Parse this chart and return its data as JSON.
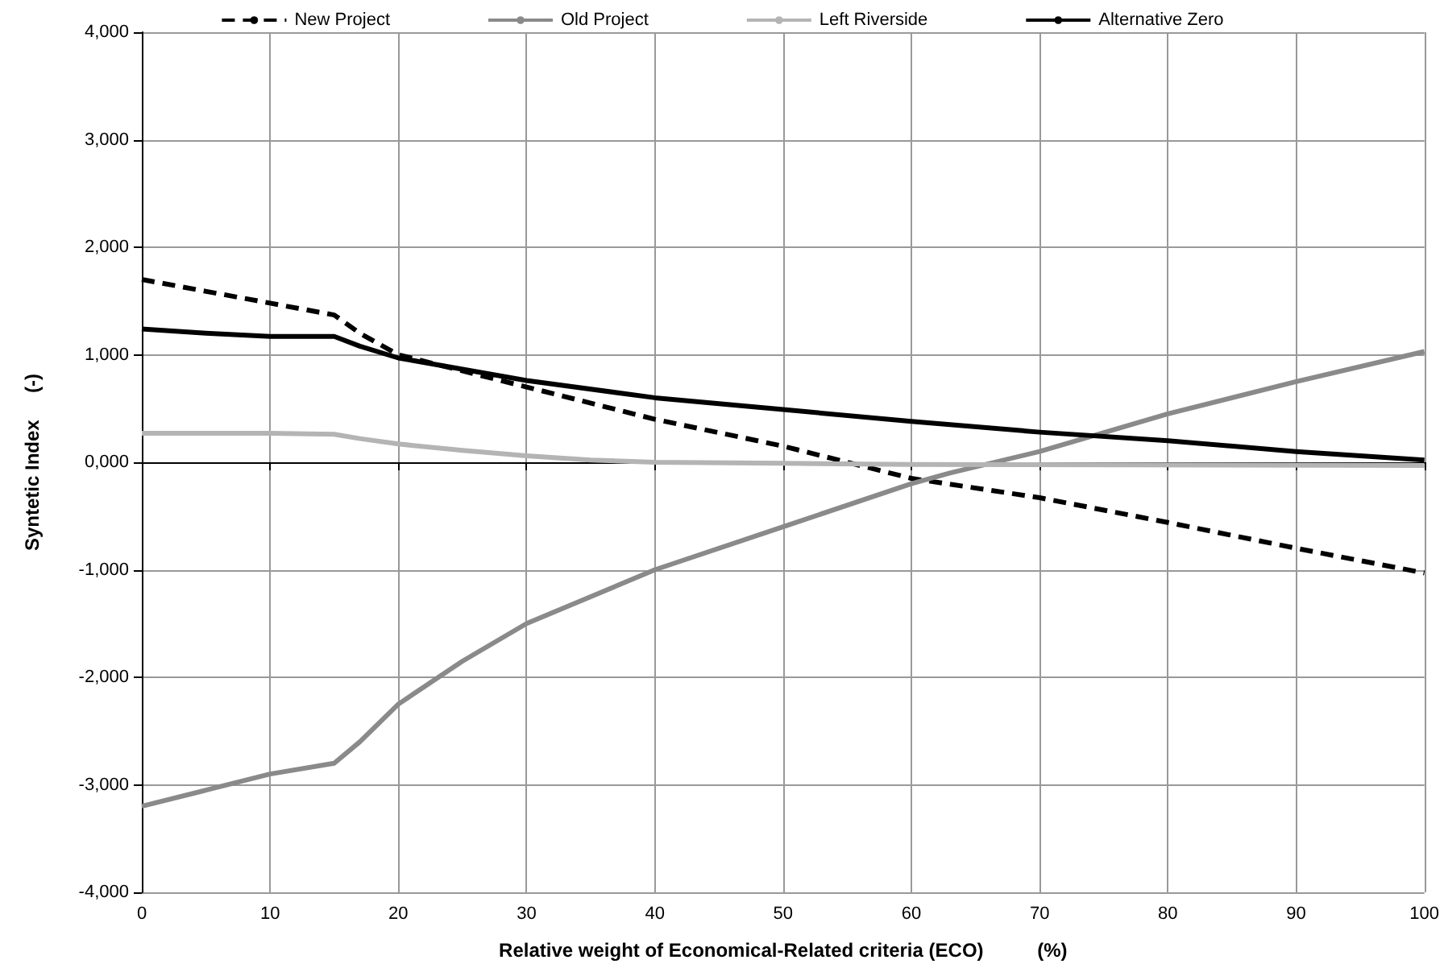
{
  "chart_data": {
    "type": "line",
    "xlabel": "Relative weight of Economical-Related criteria (ECO)          (%)",
    "ylabel": "Syntetic Index     (-)",
    "xlim": [
      0,
      100
    ],
    "xticks": [
      0,
      10,
      20,
      30,
      40,
      50,
      60,
      70,
      80,
      90,
      100
    ],
    "ylim": [
      -4000,
      4000
    ],
    "yticks": [
      {
        "value": -4000,
        "label": "-4,000"
      },
      {
        "value": -3000,
        "label": "-3,000"
      },
      {
        "value": -2000,
        "label": "-2,000"
      },
      {
        "value": -1000,
        "label": "-1,000"
      },
      {
        "value": 0,
        "label": "0,000"
      },
      {
        "value": 1000,
        "label": "1,000"
      },
      {
        "value": 2000,
        "label": "2,000"
      },
      {
        "value": 3000,
        "label": "3,000"
      },
      {
        "value": 4000,
        "label": "4,000"
      }
    ],
    "grid": true,
    "legend": "top",
    "marker": "none",
    "series": [
      {
        "name": "New Project",
        "color": "#000000",
        "line_style": "dashed",
        "x": [
          0,
          10,
          15,
          17,
          20,
          30,
          40,
          50,
          55,
          60,
          70,
          80,
          90,
          100
        ],
        "values": [
          1700,
          1480,
          1370,
          1200,
          1000,
          700,
          400,
          150,
          0,
          -150,
          -330,
          -560,
          -800,
          -1030
        ]
      },
      {
        "name": "Old Project",
        "color": "#8a8a8a",
        "line_style": "solid",
        "x": [
          0,
          5,
          10,
          15,
          17,
          20,
          25,
          30,
          40,
          50,
          60,
          63,
          70,
          80,
          90,
          100
        ],
        "values": [
          -3200,
          -3050,
          -2900,
          -2800,
          -2600,
          -2250,
          -1850,
          -1500,
          -1000,
          -600,
          -200,
          -100,
          100,
          450,
          750,
          1030
        ]
      },
      {
        "name": "Left Riverside",
        "color": "#b4b4b4",
        "line_style": "solid",
        "x": [
          0,
          10,
          15,
          17,
          20,
          25,
          30,
          35,
          40,
          50,
          60,
          100
        ],
        "values": [
          270,
          270,
          260,
          220,
          170,
          110,
          60,
          20,
          0,
          -10,
          -20,
          -30
        ]
      },
      {
        "name": "Alternative Zero",
        "color": "#000000",
        "line_style": "solid",
        "x": [
          0,
          5,
          10,
          15,
          17,
          20,
          30,
          40,
          50,
          60,
          70,
          80,
          90,
          100
        ],
        "values": [
          1240,
          1200,
          1170,
          1170,
          1080,
          970,
          760,
          600,
          490,
          380,
          280,
          200,
          100,
          20
        ]
      }
    ]
  }
}
